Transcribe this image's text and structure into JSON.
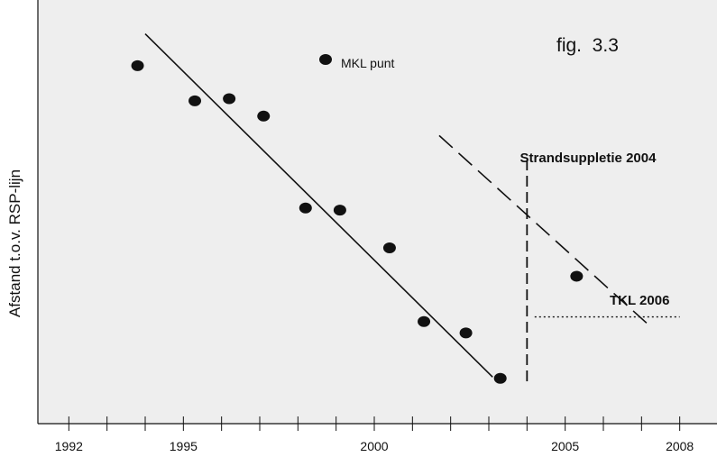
{
  "chart_data": {
    "type": "scatter",
    "title": "fig.  3.3",
    "ylabel": "Afstand t.o.v. RSP-lijn",
    "xlabel": "",
    "xlim": [
      1991,
      2009
    ],
    "ylim": [
      0,
      100
    ],
    "x_tick_labels": [
      "1992",
      "1995",
      "2000",
      "2005",
      "2008"
    ],
    "x_tick_values_labeled": [
      1992,
      1995,
      2000,
      2005,
      2008
    ],
    "x_tick_values_minor": [
      1992,
      1993,
      1994,
      1995,
      1996,
      1997,
      1998,
      1999,
      2000,
      2001,
      2002,
      2003,
      2004,
      2005,
      2006,
      2007,
      2008
    ],
    "grid": false,
    "background_color": "#eeeeee",
    "series": [
      {
        "name": "MKL punt",
        "marker": "circle",
        "color": "#111111",
        "points": [
          {
            "x": 1993.8,
            "y": 84.5
          },
          {
            "x": 1995.3,
            "y": 76.2
          },
          {
            "x": 1996.2,
            "y": 76.7
          },
          {
            "x": 1997.1,
            "y": 72.6
          },
          {
            "x": 1998.2,
            "y": 50.9
          },
          {
            "x": 1999.1,
            "y": 50.4
          },
          {
            "x": 2000.4,
            "y": 41.5
          },
          {
            "x": 2001.3,
            "y": 24.1
          },
          {
            "x": 2002.4,
            "y": 21.4
          },
          {
            "x": 2003.3,
            "y": 10.7
          },
          {
            "x": 2005.3,
            "y": 34.8
          }
        ]
      }
    ],
    "trend_lines": [
      {
        "style": "solid",
        "x": [
          1994,
          2003.1
        ],
        "y": [
          92,
          11
        ]
      },
      {
        "style": "dashed",
        "x": [
          2001.7,
          2007.2
        ],
        "y": [
          68,
          23.2
        ]
      }
    ],
    "annotations": [
      {
        "label": "Strandsuppletie 2004",
        "line_style": "dashed-vertical",
        "x": 2004,
        "y_range": [
          10,
          62
        ]
      },
      {
        "label": "TKL 2006",
        "line_style": "dotted-horizontal",
        "y": 25.2,
        "x_range": [
          2004.2,
          2008
        ]
      }
    ],
    "legend": {
      "text": "MKL punt",
      "placement": "top-center"
    }
  }
}
